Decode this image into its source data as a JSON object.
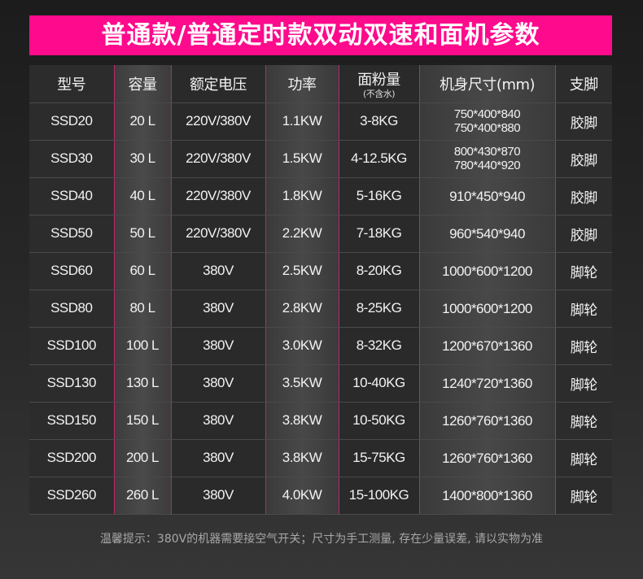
{
  "title": "普通款/普通定时款双动双速和面机参数",
  "headers": [
    "型号",
    "容量",
    "额定电压",
    "功率",
    "面粉量",
    "机身尺寸(mm)",
    "支脚"
  ],
  "header_note": "(不含水)",
  "rows": [
    [
      "SSD20",
      "20 L",
      "220V/380V",
      "1.1KW",
      "3-8KG",
      "750*400*840",
      "750*400*880",
      "胶脚"
    ],
    [
      "SSD30",
      "30 L",
      "220V/380V",
      "1.5KW",
      "4-12.5KG",
      "800*430*870",
      "780*440*920",
      "胶脚"
    ],
    [
      "SSD40",
      "40 L",
      "220V/380V",
      "1.8KW",
      "5-16KG",
      "910*450*940",
      "",
      "胶脚"
    ],
    [
      "SSD50",
      "50 L",
      "220V/380V",
      "2.2KW",
      "7-18KG",
      "960*540*940",
      "",
      "胶脚"
    ],
    [
      "SSD60",
      "60 L",
      "380V",
      "2.5KW",
      "8-20KG",
      "1000*600*1200",
      "",
      "脚轮"
    ],
    [
      "SSD80",
      "80 L",
      "380V",
      "2.8KW",
      "8-25KG",
      "1000*600*1200",
      "",
      "脚轮"
    ],
    [
      "SSD100",
      "100 L",
      "380V",
      "3.0KW",
      "8-32KG",
      "1200*670*1360",
      "",
      "脚轮"
    ],
    [
      "SSD130",
      "130 L",
      "380V",
      "3.5KW",
      "10-40KG",
      "1240*720*1360",
      "",
      "脚轮"
    ],
    [
      "SSD150",
      "150 L",
      "380V",
      "3.8KW",
      "10-50KG",
      "1260*760*1360",
      "",
      "脚轮"
    ],
    [
      "SSD200",
      "200 L",
      "380V",
      "3.8KW",
      "15-75KG",
      "1260*760*1360",
      "",
      "脚轮"
    ],
    [
      "SSD260",
      "260 L",
      "380V",
      "4.0KW",
      "15-100KG",
      "1400*800*1360",
      "",
      "脚轮"
    ]
  ],
  "footer": "温馨提示：380V的机器需要接空气开关；尺寸为手工测量, 存在少量误差, 请以实物为准",
  "colors": {
    "accent": "#fe0a8c"
  }
}
